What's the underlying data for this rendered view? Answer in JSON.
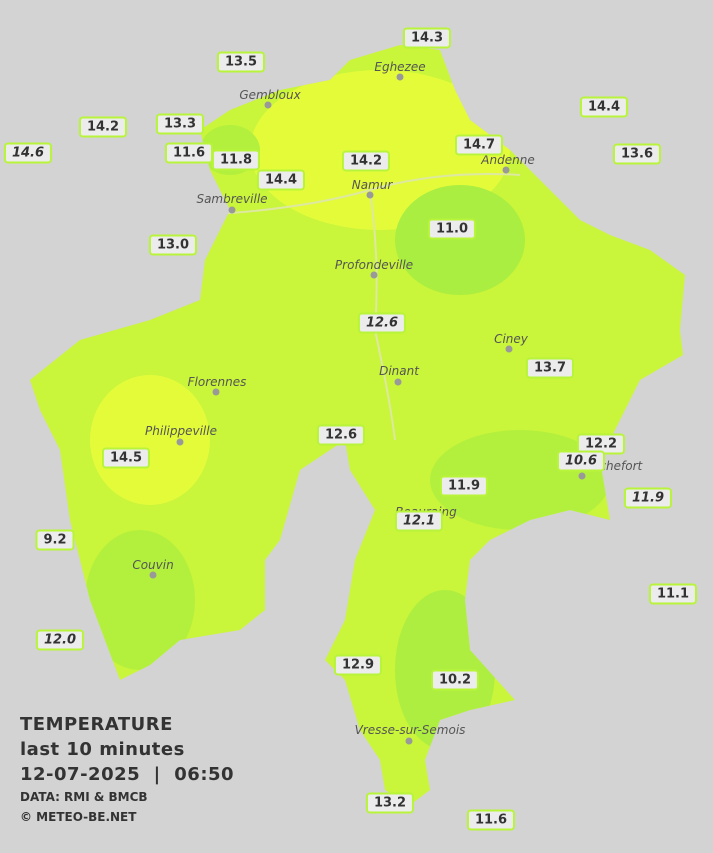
{
  "title": "TEMPERATURE",
  "subtitle": "last 10 minutes",
  "timestamp": "12-07-2025  |  06:50",
  "source": "DATA: RMI & BMCB",
  "credit": "© METEO-BE.NET",
  "cities": [
    "Eghezee",
    "Gembloux",
    "Andenne",
    "Namur",
    "Sambreville",
    "Profondeville",
    "Ciney",
    "Dinant",
    "Florennes",
    "Philippeville",
    "Rochefort",
    "Beauraing",
    "Couvin",
    "Vresse-sur-Semois"
  ],
  "stations": [
    {
      "value": "14.3",
      "italic": false
    },
    {
      "value": "13.5",
      "italic": false
    },
    {
      "value": "14.4",
      "italic": false
    },
    {
      "value": "14.2",
      "italic": false
    },
    {
      "value": "13.3",
      "italic": false
    },
    {
      "value": "14.6",
      "italic": true
    },
    {
      "value": "11.6",
      "italic": false
    },
    {
      "value": "11.8",
      "italic": false
    },
    {
      "value": "14.7",
      "italic": false
    },
    {
      "value": "14.2",
      "italic": false
    },
    {
      "value": "13.6",
      "italic": false
    },
    {
      "value": "14.4",
      "italic": false
    },
    {
      "value": "11.0",
      "italic": false
    },
    {
      "value": "13.0",
      "italic": false
    },
    {
      "value": "12.6",
      "italic": true
    },
    {
      "value": "13.7",
      "italic": false
    },
    {
      "value": "12.6",
      "italic": false
    },
    {
      "value": "12.2",
      "italic": false
    },
    {
      "value": "10.6",
      "italic": true
    },
    {
      "value": "14.5",
      "italic": false
    },
    {
      "value": "11.9",
      "italic": false
    },
    {
      "value": "11.9",
      "italic": true
    },
    {
      "value": "12.1",
      "italic": true
    },
    {
      "value": "9.2",
      "italic": false
    },
    {
      "value": "11.1",
      "italic": false
    },
    {
      "value": "12.0",
      "italic": true
    },
    {
      "value": "12.9",
      "italic": false
    },
    {
      "value": "10.2",
      "italic": false
    },
    {
      "value": "13.2",
      "italic": false
    },
    {
      "value": "11.6",
      "italic": false
    }
  ]
}
